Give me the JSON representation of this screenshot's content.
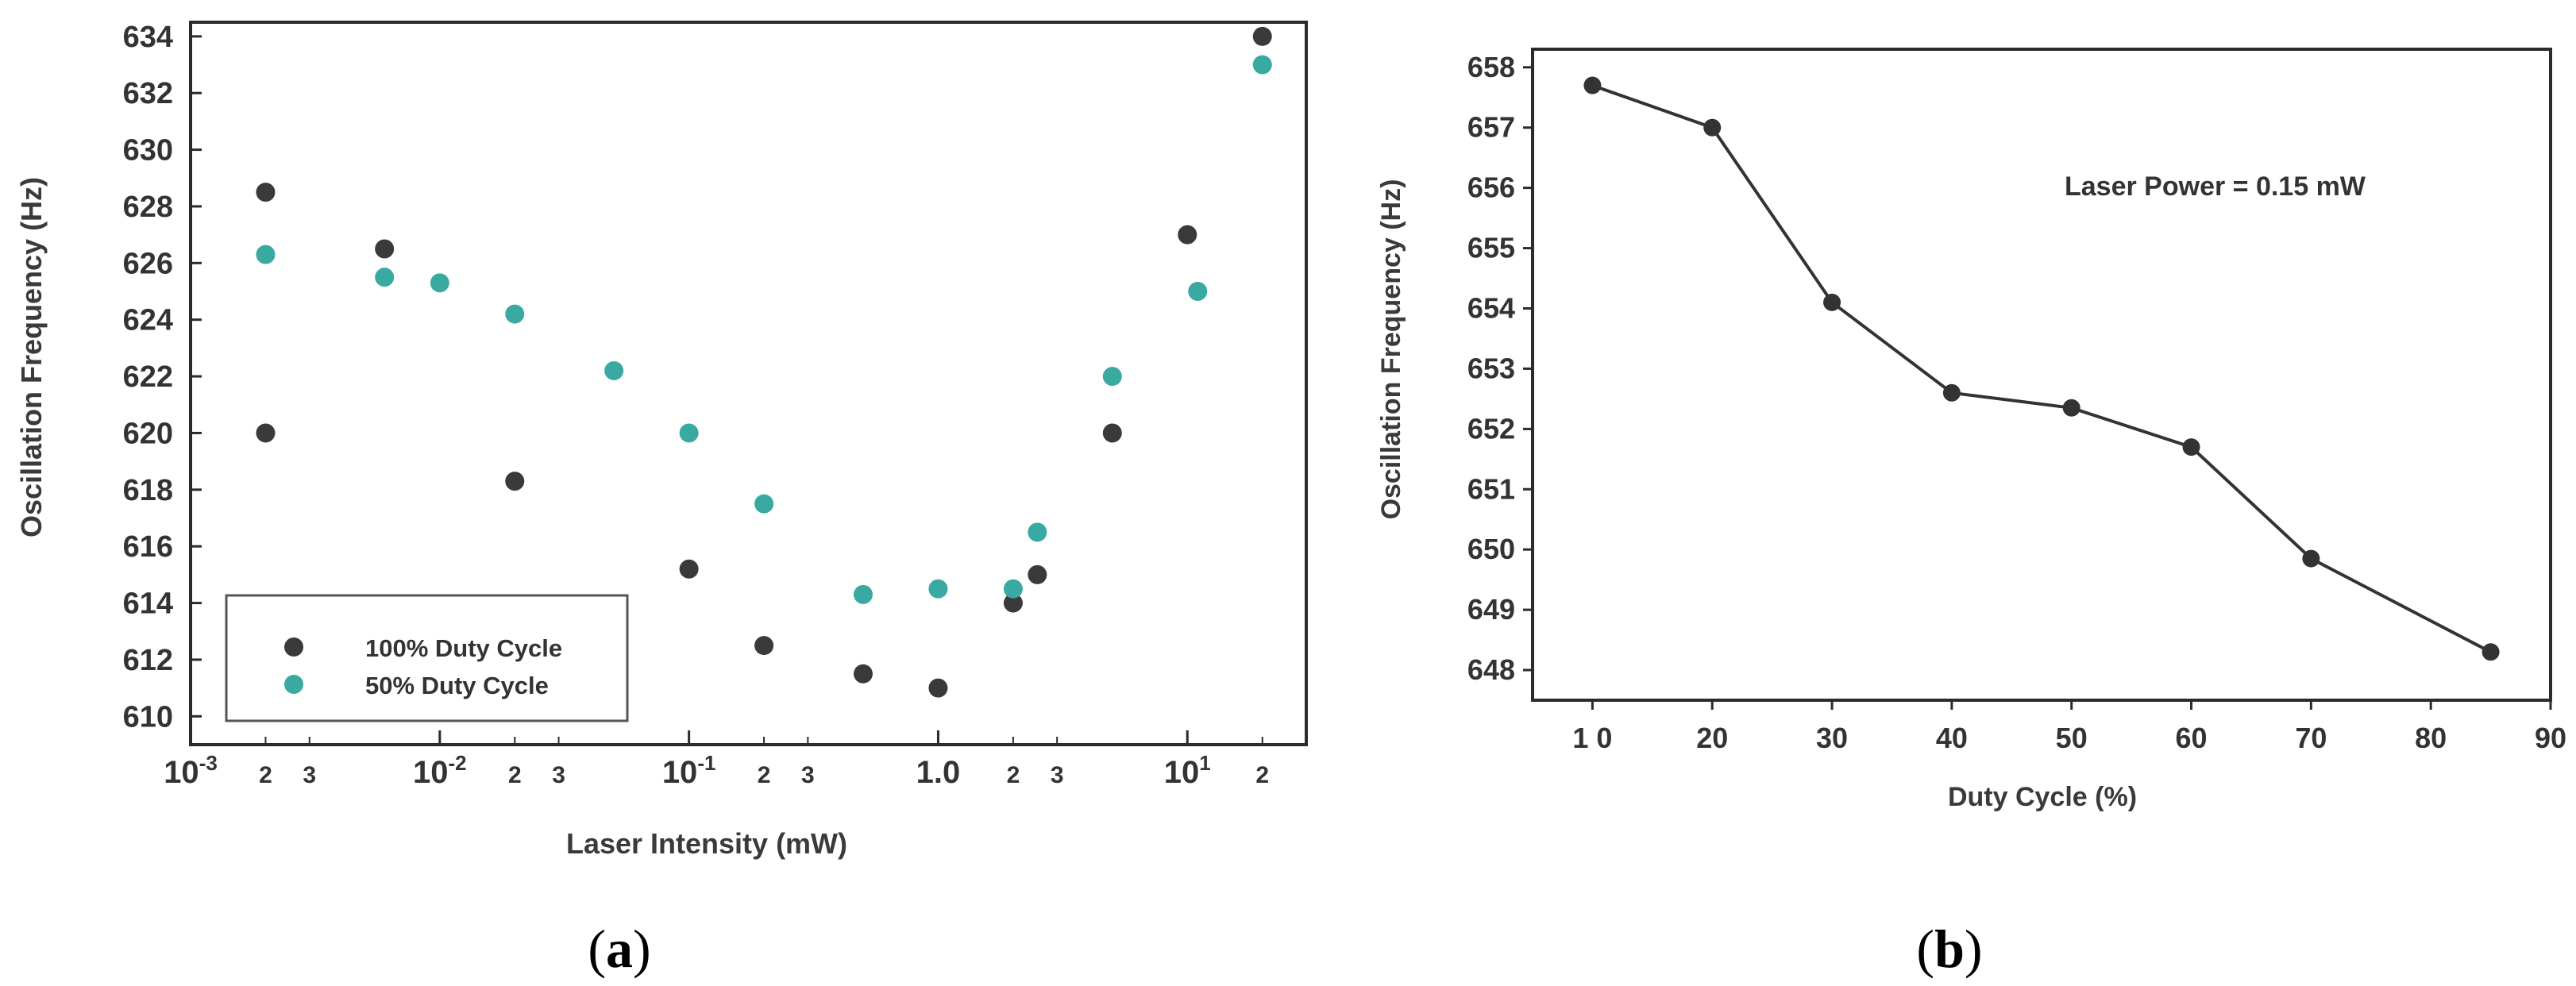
{
  "panel_a_caption_parts": [
    "(",
    "a",
    ")"
  ],
  "panel_b_caption_parts": [
    "(",
    "b",
    ")"
  ],
  "chart_data": [
    {
      "type": "scatter",
      "panel": "a",
      "xscale": "log",
      "xlim": [
        0.001,
        30
      ],
      "ylim": [
        609,
        634.5
      ],
      "xlabel": "Laser Intensity (mW)",
      "ylabel": "Oscillation Frequency (Hz)",
      "yticks": [
        "610",
        "612",
        "614",
        "616",
        "618",
        "620",
        "622",
        "624",
        "626",
        "628",
        "630",
        "632",
        "634"
      ],
      "xticks_major": [
        {
          "value": 0.001,
          "base": "10",
          "exp": "-3"
        },
        {
          "value": 0.01,
          "base": "10",
          "exp": "-2"
        },
        {
          "value": 0.1,
          "base": "10",
          "exp": "-1"
        },
        {
          "value": 1,
          "base": "1.0",
          "exp": ""
        },
        {
          "value": 10,
          "base": "10",
          "exp": "1"
        }
      ],
      "xticks_minor": [
        {
          "value": 0.002,
          "label": "2"
        },
        {
          "value": 0.003,
          "label": "3"
        },
        {
          "value": 0.02,
          "label": "2"
        },
        {
          "value": 0.03,
          "label": "3"
        },
        {
          "value": 0.2,
          "label": "2"
        },
        {
          "value": 0.3,
          "label": "3"
        },
        {
          "value": 2,
          "label": "2"
        },
        {
          "value": 3,
          "label": "3"
        },
        {
          "value": 20,
          "label": "2"
        }
      ],
      "legend_position": "bottom-left",
      "colors": {
        "series_100": "#3a3a3a",
        "series_50": "#3aa9a1",
        "frame": "#2b2b2b"
      },
      "series": [
        {
          "name": "100% Duty Cycle",
          "color": "#3a3a3a",
          "points": [
            [
              0.002,
              628.5
            ],
            [
              0.002,
              620.0
            ],
            [
              0.006,
              626.5
            ],
            [
              0.02,
              618.3
            ],
            [
              0.1,
              615.2
            ],
            [
              0.2,
              612.5
            ],
            [
              0.5,
              611.5
            ],
            [
              1.0,
              611.0
            ],
            [
              2.0,
              614.0
            ],
            [
              2.5,
              615.0
            ],
            [
              5.0,
              620.0
            ],
            [
              10.0,
              627.0
            ],
            [
              20.0,
              634.0
            ]
          ]
        },
        {
          "name": "50% Duty Cycle",
          "color": "#3aa9a1",
          "points": [
            [
              0.002,
              626.3
            ],
            [
              0.006,
              625.5
            ],
            [
              0.01,
              625.3
            ],
            [
              0.02,
              624.2
            ],
            [
              0.05,
              622.2
            ],
            [
              0.1,
              620.0
            ],
            [
              0.2,
              617.5
            ],
            [
              0.5,
              614.3
            ],
            [
              1.0,
              614.5
            ],
            [
              2.0,
              614.5
            ],
            [
              2.5,
              616.5
            ],
            [
              5.0,
              622.0
            ],
            [
              11.0,
              625.0
            ],
            [
              20.0,
              633.0
            ]
          ]
        }
      ]
    },
    {
      "type": "line",
      "panel": "b",
      "xlim": [
        5,
        90
      ],
      "ylim": [
        647.5,
        658.3
      ],
      "xlabel": "Duty Cycle (%)",
      "ylabel": "Oscillation Frequency (Hz)",
      "xticks": [
        10,
        20,
        30,
        40,
        50,
        60,
        70,
        80,
        90
      ],
      "xtick_labels": [
        "1 0",
        "20",
        "30",
        "40",
        "50",
        "60",
        "70",
        "80",
        "90"
      ],
      "yticks": [
        648,
        649,
        650,
        651,
        652,
        653,
        654,
        655,
        656,
        657,
        658
      ],
      "annotation": "Laser Power = 0.15 mW",
      "colors": {
        "line": "#333333",
        "marker": "#333333",
        "frame": "#2b2b2b"
      },
      "x": [
        10,
        20,
        30,
        40,
        50,
        60,
        70,
        85
      ],
      "y": [
        657.7,
        657.0,
        654.1,
        652.6,
        652.35,
        651.7,
        649.85,
        648.3
      ]
    }
  ]
}
